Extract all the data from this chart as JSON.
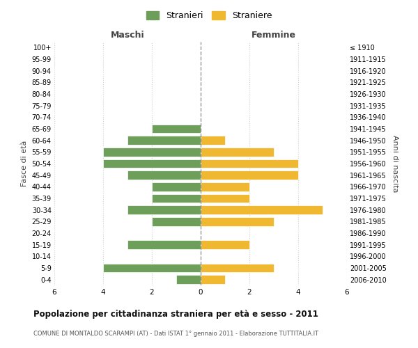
{
  "age_groups": [
    "0-4",
    "5-9",
    "10-14",
    "15-19",
    "20-24",
    "25-29",
    "30-34",
    "35-39",
    "40-44",
    "45-49",
    "50-54",
    "55-59",
    "60-64",
    "65-69",
    "70-74",
    "75-79",
    "80-84",
    "85-89",
    "90-94",
    "95-99",
    "100+"
  ],
  "birth_years": [
    "2006-2010",
    "2001-2005",
    "1996-2000",
    "1991-1995",
    "1986-1990",
    "1981-1985",
    "1976-1980",
    "1971-1975",
    "1966-1970",
    "1961-1965",
    "1956-1960",
    "1951-1955",
    "1946-1950",
    "1941-1945",
    "1936-1940",
    "1931-1935",
    "1926-1930",
    "1921-1925",
    "1916-1920",
    "1911-1915",
    "≤ 1910"
  ],
  "maschi": [
    1,
    4,
    0,
    3,
    0,
    2,
    3,
    2,
    2,
    3,
    4,
    4,
    3,
    2,
    0,
    0,
    0,
    0,
    0,
    0,
    0
  ],
  "femmine": [
    1,
    3,
    0,
    2,
    0,
    3,
    5,
    2,
    2,
    4,
    4,
    3,
    1,
    0,
    0,
    0,
    0,
    0,
    0,
    0,
    0
  ],
  "color_maschi": "#6d9e5a",
  "color_femmine": "#f0b830",
  "title": "Popolazione per cittadinanza straniera per età e sesso - 2011",
  "subtitle": "COMUNE DI MONTALDO SCARAMPI (AT) - Dati ISTAT 1° gennaio 2011 - Elaborazione TUTTITALIA.IT",
  "label_maschi": "Maschi",
  "label_femmine": "Femmine",
  "ylabel_left": "Fasce di età",
  "ylabel_right": "Anni di nascita",
  "legend_maschi": "Stranieri",
  "legend_femmine": "Straniere",
  "xlim": 6,
  "background_color": "#ffffff",
  "grid_color": "#d0d0d0",
  "bar_edge_color": "#ffffff",
  "bar_linewidth": 0.5
}
